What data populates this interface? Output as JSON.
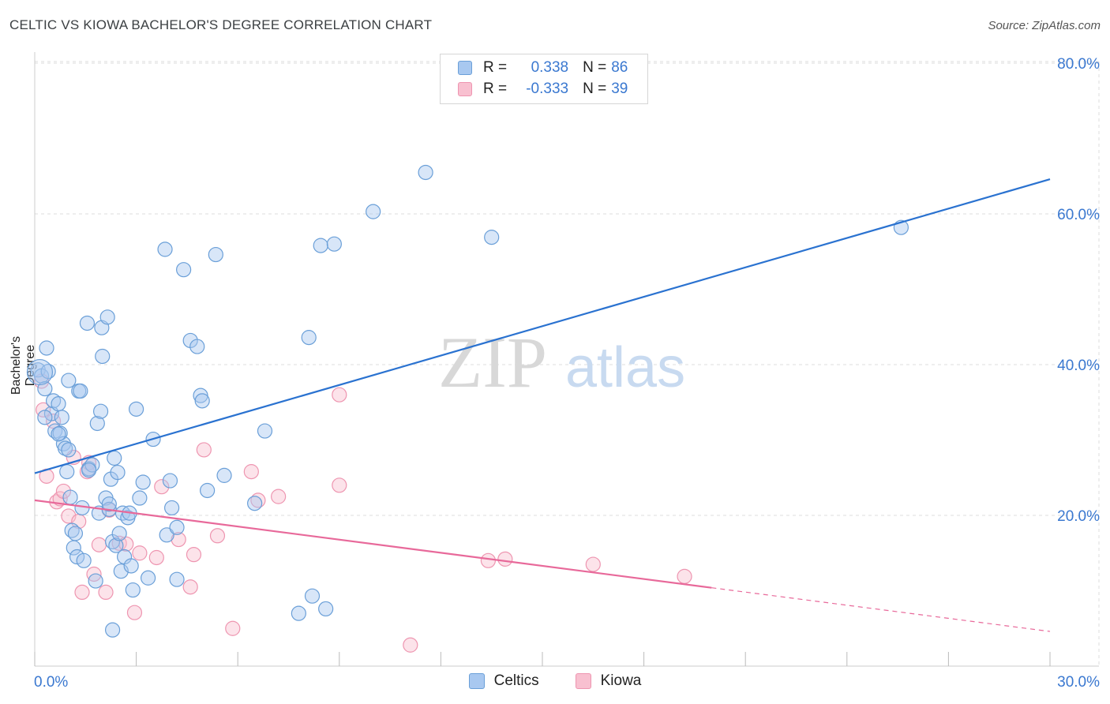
{
  "title": "CELTIC VS KIOWA BACHELOR'S DEGREE CORRELATION CHART",
  "source": "Source: ZipAtlas.com",
  "watermark": {
    "zip": "ZIP",
    "atlas": "atlas"
  },
  "colors": {
    "celtics_fill": "#a8c8f0",
    "celtics_stroke": "#6a9fd8",
    "celtics_line": "#2a72d0",
    "kiowa_fill": "#f8c0d0",
    "kiowa_stroke": "#ee95b0",
    "kiowa_line": "#e8699a",
    "value_text": "#3a78d0",
    "grid": "#dddddd"
  },
  "legend": {
    "rows": [
      {
        "r_label": "R =",
        "r_value": "0.338",
        "n_label": "N =",
        "n_value": "86"
      },
      {
        "r_label": "R =",
        "r_value": "-0.333",
        "n_label": "N =",
        "n_value": "39"
      }
    ]
  },
  "bottom_legend": {
    "celtics": "Celtics",
    "kiowa": "Kiowa"
  },
  "chart_data": {
    "type": "scatter",
    "title": "CELTIC VS KIOWA BACHELOR'S DEGREE CORRELATION CHART",
    "xlabel": "",
    "ylabel": "Bachelor's Degree",
    "xlim": [
      0,
      30
    ],
    "ylim": [
      0,
      80
    ],
    "x_tick_labels": [
      "0.0%",
      "30.0%"
    ],
    "y_tick_labels": [
      "80.0%",
      "60.0%",
      "40.0%",
      "20.0%"
    ],
    "y_ticks": [
      80,
      60,
      40,
      20
    ],
    "grid": true,
    "series": [
      {
        "name": "Celtics",
        "r": 0.338,
        "n": 86,
        "trend": {
          "x": [
            0,
            30
          ],
          "y": [
            25.6,
            64.6
          ]
        },
        "points": [
          [
            0.1,
            39.3
          ],
          [
            0.2,
            38.5
          ],
          [
            0.3,
            36.8
          ],
          [
            0.35,
            42.2
          ],
          [
            0.4,
            39.1
          ],
          [
            0.5,
            33.5
          ],
          [
            0.55,
            35.2
          ],
          [
            0.6,
            31.2
          ],
          [
            0.7,
            34.8
          ],
          [
            0.75,
            30.9
          ],
          [
            0.8,
            33.0
          ],
          [
            0.85,
            29.5
          ],
          [
            0.9,
            28.9
          ],
          [
            0.95,
            25.8
          ],
          [
            1.0,
            37.9
          ],
          [
            1.05,
            22.4
          ],
          [
            1.1,
            18.0
          ],
          [
            1.15,
            15.7
          ],
          [
            1.2,
            17.6
          ],
          [
            1.25,
            14.5
          ],
          [
            1.3,
            36.5
          ],
          [
            1.35,
            36.5
          ],
          [
            1.4,
            21.0
          ],
          [
            1.45,
            14.0
          ],
          [
            1.55,
            45.5
          ],
          [
            1.6,
            26.2
          ],
          [
            1.7,
            26.7
          ],
          [
            1.8,
            11.3
          ],
          [
            1.85,
            32.2
          ],
          [
            1.9,
            20.3
          ],
          [
            1.95,
            33.8
          ],
          [
            1.98,
            44.9
          ],
          [
            2.0,
            41.1
          ],
          [
            2.1,
            22.3
          ],
          [
            2.15,
            46.3
          ],
          [
            2.2,
            20.8
          ],
          [
            2.25,
            24.8
          ],
          [
            2.3,
            16.5
          ],
          [
            2.35,
            27.6
          ],
          [
            2.4,
            16.0
          ],
          [
            2.45,
            25.7
          ],
          [
            2.5,
            17.6
          ],
          [
            2.55,
            12.6
          ],
          [
            2.6,
            20.3
          ],
          [
            2.65,
            14.5
          ],
          [
            2.75,
            19.7
          ],
          [
            2.8,
            20.3
          ],
          [
            2.85,
            13.3
          ],
          [
            2.9,
            10.1
          ],
          [
            3.0,
            34.1
          ],
          [
            3.1,
            22.3
          ],
          [
            3.2,
            24.4
          ],
          [
            3.35,
            11.7
          ],
          [
            3.5,
            30.1
          ],
          [
            3.85,
            55.3
          ],
          [
            3.9,
            17.4
          ],
          [
            4.0,
            24.6
          ],
          [
            4.05,
            21.0
          ],
          [
            4.2,
            18.4
          ],
          [
            4.2,
            11.5
          ],
          [
            4.4,
            52.6
          ],
          [
            4.6,
            43.2
          ],
          [
            4.8,
            42.4
          ],
          [
            4.9,
            35.9
          ],
          [
            4.95,
            35.2
          ],
          [
            5.1,
            23.3
          ],
          [
            5.35,
            54.6
          ],
          [
            5.6,
            25.3
          ],
          [
            6.5,
            21.6
          ],
          [
            6.8,
            31.2
          ],
          [
            7.8,
            7.0
          ],
          [
            8.1,
            43.6
          ],
          [
            8.2,
            9.3
          ],
          [
            8.45,
            55.8
          ],
          [
            8.6,
            7.6
          ],
          [
            8.85,
            56.0
          ],
          [
            10.0,
            60.3
          ],
          [
            11.55,
            65.5
          ],
          [
            13.5,
            56.9
          ],
          [
            25.6,
            58.2
          ],
          [
            2.3,
            4.8
          ],
          [
            0.3,
            33.0
          ],
          [
            0.7,
            30.8
          ],
          [
            1.6,
            26.0
          ],
          [
            1.0,
            28.7
          ],
          [
            2.2,
            21.5
          ]
        ]
      },
      {
        "name": "Kiowa",
        "r": -0.333,
        "n": 39,
        "trend": {
          "x": [
            0,
            20
          ],
          "y": [
            22.0,
            10.4
          ]
        },
        "trend_dashed": {
          "x": [
            20,
            30
          ],
          "y": [
            10.4,
            4.6
          ]
        },
        "points": [
          [
            0.2,
            37.8
          ],
          [
            0.25,
            34.0
          ],
          [
            0.35,
            25.2
          ],
          [
            0.55,
            32.5
          ],
          [
            0.65,
            21.8
          ],
          [
            0.75,
            22.2
          ],
          [
            0.85,
            23.2
          ],
          [
            1.0,
            19.9
          ],
          [
            1.15,
            27.7
          ],
          [
            1.3,
            19.2
          ],
          [
            1.4,
            9.8
          ],
          [
            1.55,
            25.8
          ],
          [
            1.6,
            27.0
          ],
          [
            1.75,
            12.2
          ],
          [
            1.9,
            16.1
          ],
          [
            2.1,
            9.8
          ],
          [
            2.2,
            20.7
          ],
          [
            2.5,
            16.3
          ],
          [
            2.7,
            16.2
          ],
          [
            2.95,
            7.1
          ],
          [
            3.1,
            15.0
          ],
          [
            3.6,
            14.4
          ],
          [
            3.75,
            23.8
          ],
          [
            4.25,
            16.8
          ],
          [
            4.6,
            10.5
          ],
          [
            4.7,
            14.8
          ],
          [
            5.0,
            28.7
          ],
          [
            5.4,
            17.3
          ],
          [
            5.85,
            5.0
          ],
          [
            6.4,
            25.8
          ],
          [
            6.6,
            22.0
          ],
          [
            7.2,
            22.5
          ],
          [
            9.0,
            36.0
          ],
          [
            9.0,
            24.0
          ],
          [
            11.1,
            2.8
          ],
          [
            13.4,
            14.0
          ],
          [
            13.9,
            14.2
          ],
          [
            16.5,
            13.5
          ],
          [
            19.2,
            11.9
          ]
        ]
      }
    ]
  }
}
